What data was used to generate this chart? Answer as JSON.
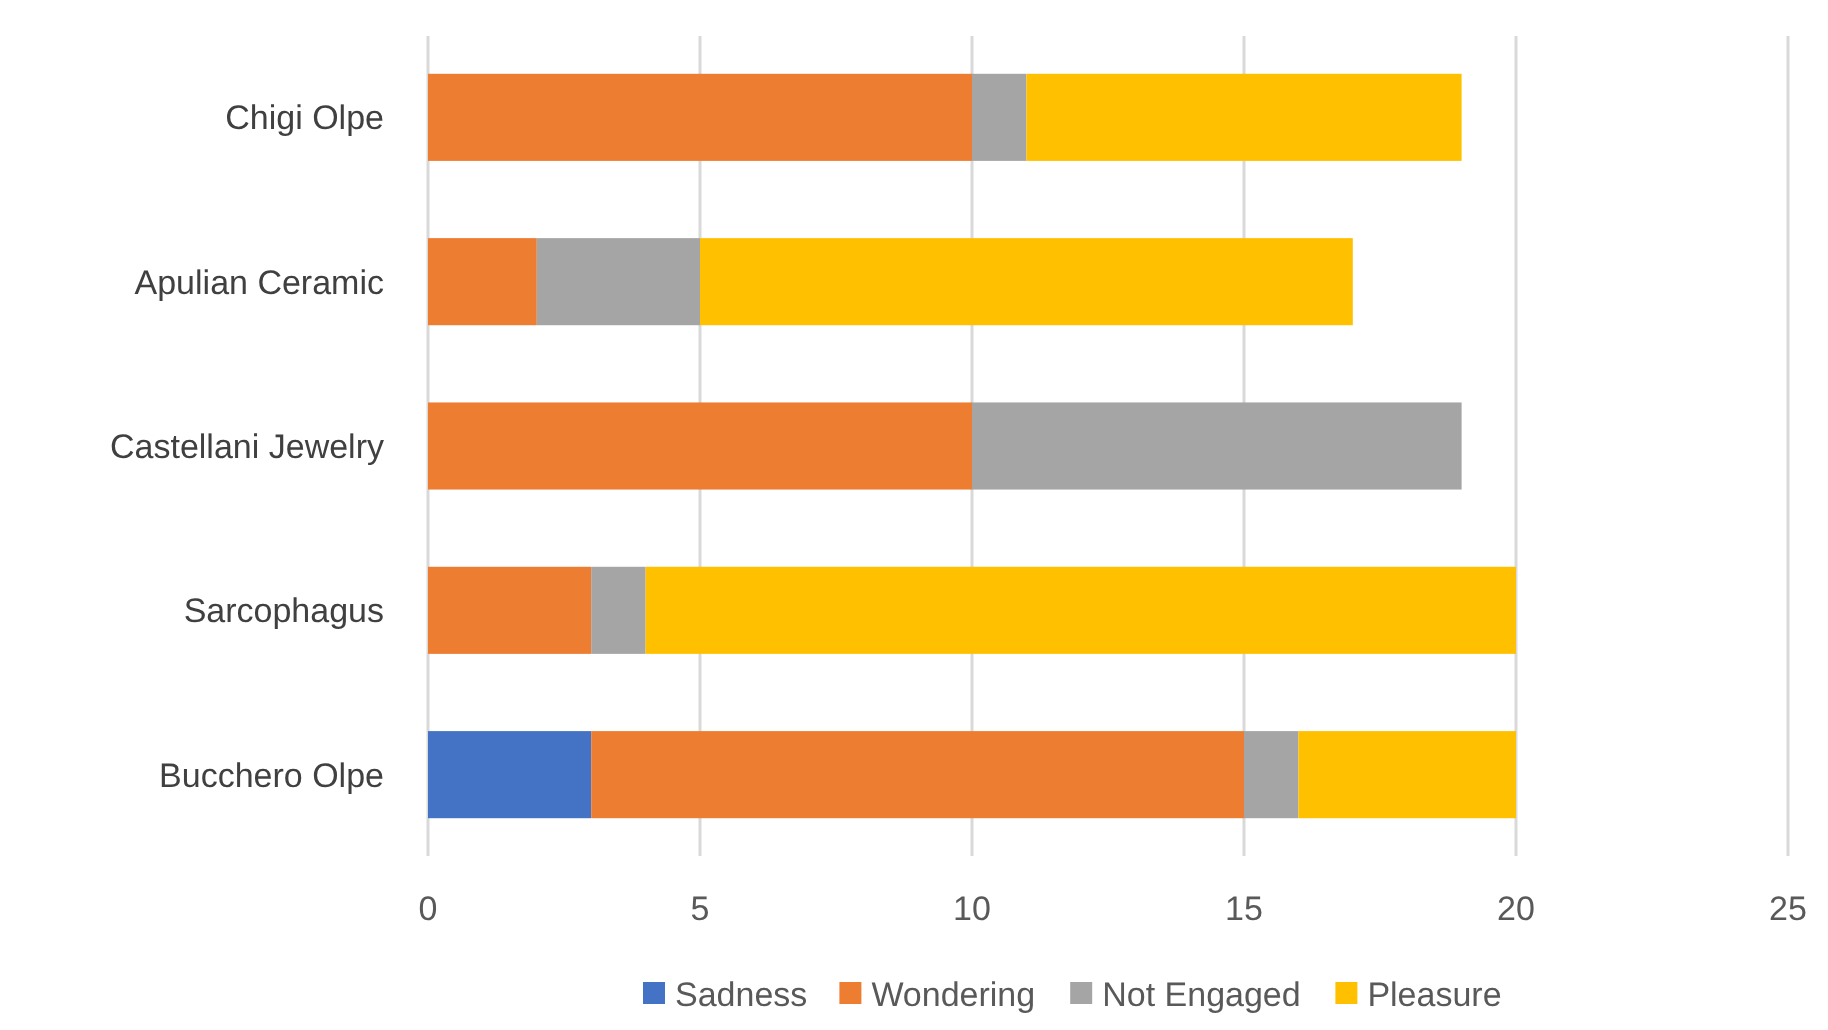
{
  "chart_data": {
    "type": "bar",
    "orientation": "horizontal",
    "stacked": true,
    "categories": [
      "Chigi Olpe",
      "Apulian Ceramic",
      "Castellani Jewelry",
      "Sarcophagus",
      "Bucchero Olpe"
    ],
    "series": [
      {
        "name": "Sadness",
        "color": "#4472c4",
        "values": [
          0,
          0,
          0,
          0,
          3
        ]
      },
      {
        "name": "Wondering",
        "color": "#ed7d31",
        "values": [
          10,
          2,
          10,
          3,
          12
        ]
      },
      {
        "name": "Not Engaged",
        "color": "#a5a5a5",
        "values": [
          1,
          3,
          9,
          1,
          1
        ]
      },
      {
        "name": "Pleasure",
        "color": "#ffc000",
        "values": [
          8,
          12,
          0,
          16,
          4
        ]
      }
    ],
    "xlim": [
      0,
      25
    ],
    "xticks": [
      0,
      5,
      10,
      15,
      20,
      25
    ],
    "grid": "x",
    "legend": "bottom"
  }
}
